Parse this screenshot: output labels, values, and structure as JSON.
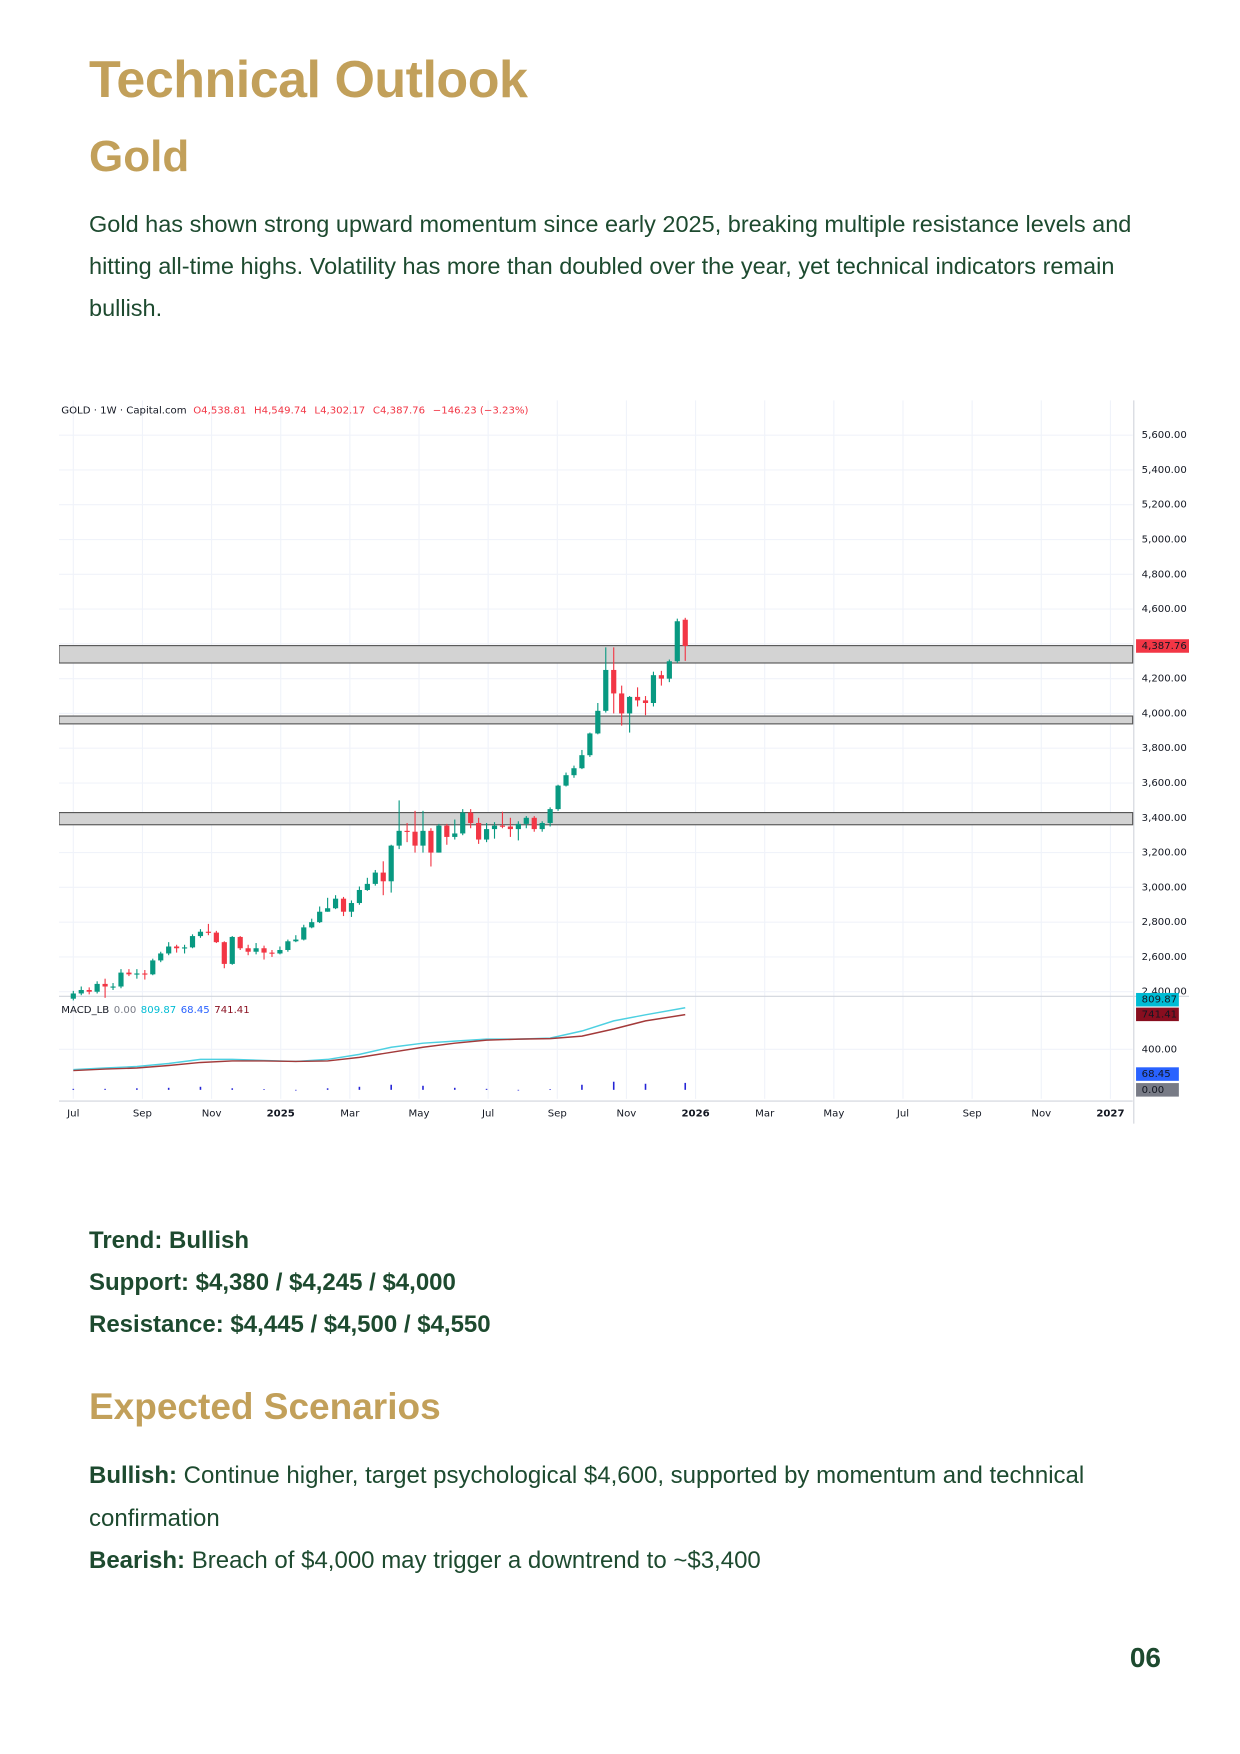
{
  "header": {
    "title": "Technical Outlook",
    "subtitle": "Gold"
  },
  "paragraph": "Gold has shown strong upward momentum since early 2025, breaking multiple resistance levels and hitting all-time highs. Volatility has more than doubled over the year, yet technical indicators remain bullish.",
  "chart_data": {
    "type": "candlestick",
    "legend": {
      "symbol": "GOLD · 1W · Capital.com",
      "ohlc": [
        "O4,538.81",
        "H4,549.74",
        "L4,302.17",
        "C4,387.76"
      ],
      "change": "−146.23 (−3.23%)"
    },
    "last_price_label": "4,387.76",
    "up_color": "#089981",
    "down_color": "#f23645",
    "candles": [
      [
        2360,
        2405,
        2350,
        2390
      ],
      [
        2390,
        2430,
        2380,
        2410
      ],
      [
        2410,
        2425,
        2385,
        2400
      ],
      [
        2400,
        2460,
        2390,
        2445
      ],
      [
        2445,
        2475,
        2365,
        2430
      ],
      [
        2430,
        2450,
        2410,
        2430
      ],
      [
        2430,
        2530,
        2420,
        2510
      ],
      [
        2510,
        2530,
        2490,
        2500
      ],
      [
        2500,
        2530,
        2475,
        2505
      ],
      [
        2505,
        2525,
        2470,
        2500
      ],
      [
        2500,
        2590,
        2495,
        2580
      ],
      [
        2580,
        2630,
        2570,
        2620
      ],
      [
        2620,
        2685,
        2610,
        2660
      ],
      [
        2660,
        2670,
        2625,
        2650
      ],
      [
        2650,
        2670,
        2620,
        2655
      ],
      [
        2655,
        2730,
        2650,
        2720
      ],
      [
        2720,
        2760,
        2710,
        2745
      ],
      [
        2745,
        2790,
        2725,
        2740
      ],
      [
        2740,
        2750,
        2680,
        2685
      ],
      [
        2685,
        2690,
        2535,
        2560
      ],
      [
        2560,
        2720,
        2555,
        2715
      ],
      [
        2715,
        2720,
        2640,
        2650
      ],
      [
        2650,
        2670,
        2610,
        2630
      ],
      [
        2630,
        2680,
        2615,
        2650
      ],
      [
        2650,
        2665,
        2585,
        2625
      ],
      [
        2625,
        2640,
        2600,
        2620
      ],
      [
        2620,
        2660,
        2615,
        2640
      ],
      [
        2640,
        2700,
        2630,
        2690
      ],
      [
        2690,
        2725,
        2685,
        2700
      ],
      [
        2700,
        2785,
        2695,
        2770
      ],
      [
        2770,
        2820,
        2765,
        2800
      ],
      [
        2800,
        2890,
        2795,
        2860
      ],
      [
        2860,
        2940,
        2860,
        2880
      ],
      [
        2880,
        2955,
        2875,
        2935
      ],
      [
        2935,
        2945,
        2835,
        2860
      ],
      [
        2860,
        2925,
        2830,
        2910
      ],
      [
        2910,
        3005,
        2900,
        2985
      ],
      [
        2985,
        3055,
        2980,
        3020
      ],
      [
        3020,
        3100,
        3010,
        3085
      ],
      [
        3085,
        3150,
        2955,
        3035
      ],
      [
        3035,
        3245,
        2970,
        3240
      ],
      [
        3240,
        3500,
        3220,
        3325
      ],
      [
        3325,
        3370,
        3260,
        3320
      ],
      [
        3320,
        3440,
        3200,
        3240
      ],
      [
        3240,
        3440,
        3200,
        3325
      ],
      [
        3325,
        3340,
        3120,
        3200
      ],
      [
        3200,
        3365,
        3200,
        3355
      ],
      [
        3355,
        3365,
        3245,
        3290
      ],
      [
        3290,
        3390,
        3275,
        3310
      ],
      [
        3310,
        3450,
        3300,
        3430
      ],
      [
        3430,
        3450,
        3340,
        3370
      ],
      [
        3370,
        3400,
        3250,
        3275
      ],
      [
        3275,
        3370,
        3260,
        3335
      ],
      [
        3335,
        3375,
        3280,
        3355
      ],
      [
        3355,
        3435,
        3340,
        3350
      ],
      [
        3350,
        3400,
        3290,
        3335
      ],
      [
        3335,
        3380,
        3270,
        3365
      ],
      [
        3365,
        3410,
        3340,
        3400
      ],
      [
        3400,
        3410,
        3320,
        3335
      ],
      [
        3335,
        3380,
        3320,
        3370
      ],
      [
        3370,
        3460,
        3350,
        3450
      ],
      [
        3450,
        3590,
        3440,
        3585
      ],
      [
        3585,
        3660,
        3580,
        3645
      ],
      [
        3645,
        3700,
        3630,
        3685
      ],
      [
        3685,
        3790,
        3680,
        3760
      ],
      [
        3760,
        3890,
        3750,
        3885
      ],
      [
        3885,
        4060,
        3880,
        4015
      ],
      [
        4015,
        4380,
        4005,
        4250
      ],
      [
        4250,
        4380,
        4000,
        4115
      ],
      [
        4115,
        4160,
        3930,
        4000
      ],
      [
        4000,
        4100,
        3890,
        4095
      ],
      [
        4095,
        4150,
        4040,
        4075
      ],
      [
        4075,
        4100,
        3990,
        4060
      ],
      [
        4060,
        4240,
        4040,
        4220
      ],
      [
        4220,
        4245,
        4160,
        4200
      ],
      [
        4200,
        4310,
        4180,
        4300
      ],
      [
        4300,
        4545,
        4290,
        4530
      ],
      [
        4538.81,
        4549.74,
        4302.17,
        4387.76
      ]
    ],
    "zones": [
      [
        4290,
        4390
      ],
      [
        3940,
        3985
      ],
      [
        3360,
        3430
      ]
    ],
    "ylim": [
      2380,
      5800
    ],
    "yticks": [
      {
        "value": 2400,
        "label": "2,400.00"
      },
      {
        "value": 2600,
        "label": "2,600.00"
      },
      {
        "value": 2800,
        "label": "2,800.00"
      },
      {
        "value": 3000,
        "label": "3,000.00"
      },
      {
        "value": 3200,
        "label": "3,200.00"
      },
      {
        "value": 3400,
        "label": "3,400.00"
      },
      {
        "value": 3600,
        "label": "3,600.00"
      },
      {
        "value": 3800,
        "label": "3,800.00"
      },
      {
        "value": 4000,
        "label": "4,000.00"
      },
      {
        "value": 4200,
        "label": "4,200.00"
      },
      {
        "value": 4400,
        "label": "4,400.00"
      },
      {
        "value": 4600,
        "label": "4,600.00"
      },
      {
        "value": 4800,
        "label": "4,800.00"
      },
      {
        "value": 5000,
        "label": "5,000.00"
      },
      {
        "value": 5200,
        "label": "5,200.00"
      },
      {
        "value": 5400,
        "label": "5,400.00"
      },
      {
        "value": 5600,
        "label": "5,600.00"
      }
    ],
    "xlim": [
      -1.8,
      133.3
    ],
    "xticks": [
      {
        "value": 0,
        "label": "Jul"
      },
      {
        "value": 8.7,
        "label": "Sep"
      },
      {
        "value": 17.4,
        "label": "Nov"
      },
      {
        "value": 26.1,
        "label": "2025"
      },
      {
        "value": 34.8,
        "label": "Mar"
      },
      {
        "value": 43.5,
        "label": "May"
      },
      {
        "value": 52.2,
        "label": "Jul"
      },
      {
        "value": 60.9,
        "label": "Sep"
      },
      {
        "value": 69.6,
        "label": "Nov"
      },
      {
        "value": 78.3,
        "label": "2026"
      },
      {
        "value": 87,
        "label": "Mar"
      },
      {
        "value": 95.7,
        "label": "May"
      },
      {
        "value": 104.4,
        "label": "Jul"
      },
      {
        "value": 113.1,
        "label": "Sep"
      },
      {
        "value": 121.8,
        "label": "Nov"
      },
      {
        "value": 130.5,
        "label": "2027"
      }
    ],
    "macd": {
      "name": "MACD_LB",
      "labels": [
        "0.00",
        "809.87",
        "68.45",
        "741.41"
      ],
      "label_colors": [
        "#787b86",
        "#00bcd4",
        "#2962ff",
        "#880e1f"
      ],
      "x": [
        0,
        4,
        8,
        12,
        16,
        20,
        24,
        28,
        32,
        36,
        40,
        44,
        48,
        52,
        56,
        60,
        64,
        68,
        72,
        77
      ],
      "series": [
        {
          "color": "#4dd0e1",
          "values": [
            200,
            215,
            230,
            260,
            300,
            300,
            290,
            280,
            300,
            350,
            420,
            460,
            480,
            500,
            500,
            510,
            580,
            680,
            740,
            809.87
          ]
        },
        {
          "color": "#a33a3a",
          "values": [
            190,
            205,
            215,
            240,
            270,
            285,
            285,
            280,
            285,
            320,
            370,
            420,
            460,
            490,
            500,
            505,
            530,
            600,
            680,
            741.41
          ]
        }
      ],
      "histogram": {
        "color": "#2424d6",
        "values": [
          10,
          10,
          15,
          20,
          30,
          15,
          5,
          0,
          15,
          30,
          50,
          40,
          20,
          10,
          0,
          5,
          50,
          80,
          60,
          68.45
        ]
      },
      "ylim": [
        -89,
        911
      ],
      "yticks": [
        {
          "value": 400,
          "label": "400.00"
        }
      ]
    }
  },
  "details": [
    "Trend: Bullish",
    "Support: $4,380 / $4,245 / $4,000",
    "Resistance: $4,445 / $4,500 / $4,550"
  ],
  "scenarios": {
    "heading": "Expected Scenarios",
    "items": [
      {
        "label": "Bullish:",
        "text": "Continue higher, target psychological $4,600, supported by momentum and technical confirmation"
      },
      {
        "label": "Bearish:",
        "text": "Breach of $4,000 may trigger a downtrend to ~$3,400"
      }
    ]
  },
  "page_number": "06"
}
